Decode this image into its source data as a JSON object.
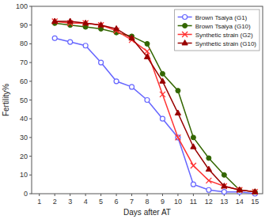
{
  "chart_data": {
    "type": "line",
    "x": [
      1,
      2,
      3,
      4,
      5,
      6,
      7,
      8,
      9,
      10,
      11,
      12,
      13,
      14,
      15
    ],
    "xlabel": "Days after AT",
    "ylabel": "Fertility%",
    "xlim": [
      0.5,
      15.5
    ],
    "ylim": [
      0,
      100
    ],
    "xticks": [
      1,
      2,
      3,
      4,
      5,
      6,
      7,
      8,
      9,
      10,
      11,
      12,
      13,
      14,
      15
    ],
    "yticks": [
      0,
      10,
      20,
      30,
      40,
      50,
      60,
      70,
      80,
      90,
      100
    ],
    "grid": false,
    "legend": "upper right",
    "series": [
      {
        "name": "Brown Tsaiya (G1)",
        "color": "#6666ff",
        "marker": "open_circle",
        "values": [
          null,
          83,
          81,
          79,
          70,
          60,
          57,
          50,
          40,
          30,
          5,
          2,
          1,
          1,
          0
        ]
      },
      {
        "name": "Brown Tsaiya (G10)",
        "color": "#336600",
        "marker": "circle",
        "values": [
          null,
          91,
          90,
          89,
          88,
          86,
          84,
          80,
          64,
          55,
          30,
          19,
          10,
          2,
          1
        ]
      },
      {
        "name": "Synthetic strain (G2)",
        "color": "#ff3333",
        "marker": "x",
        "values": [
          null,
          92,
          91,
          91,
          90,
          87,
          82,
          76,
          53,
          30,
          15,
          7,
          4,
          2,
          1
        ]
      },
      {
        "name": "Synthetic strain (G10)",
        "color": "#990000",
        "marker": "triangle",
        "values": [
          null,
          92,
          92,
          91,
          90,
          88,
          83,
          73,
          60,
          43,
          25,
          13,
          4,
          2,
          1
        ]
      }
    ]
  }
}
